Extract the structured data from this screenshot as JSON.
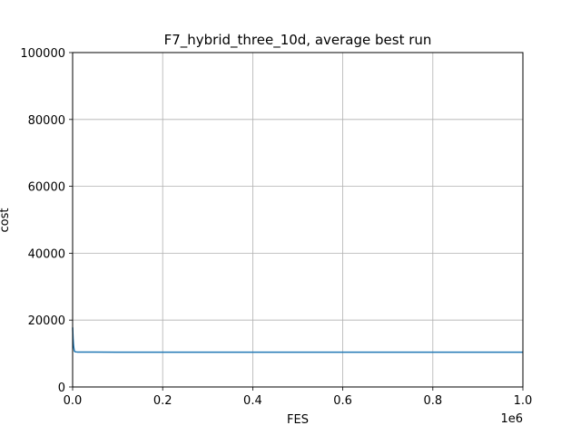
{
  "chart_data": {
    "type": "line",
    "title": "F7_hybrid_three_10d, average best run",
    "xlabel": "FES",
    "ylabel": "cost",
    "x_offset_label": "1e6",
    "xlim": [
      0,
      1.0
    ],
    "ylim": [
      0,
      100000
    ],
    "x_ticks": [
      0.0,
      0.2,
      0.4,
      0.6,
      0.8,
      1.0
    ],
    "x_tick_labels": [
      "0.0",
      "0.2",
      "0.4",
      "0.6",
      "0.8",
      "1.0"
    ],
    "y_ticks": [
      0,
      20000,
      40000,
      60000,
      80000,
      100000
    ],
    "y_tick_labels": [
      "0",
      "20000",
      "40000",
      "60000",
      "80000",
      "100000"
    ],
    "grid": true,
    "series": [
      {
        "color": "#1f77b4",
        "x": [
          0.0,
          0.001,
          0.002,
          0.003,
          0.004,
          0.006,
          0.01,
          0.05,
          0.2,
          0.4,
          0.6,
          0.8,
          1.0
        ],
        "y": [
          17800,
          14500,
          12500,
          11400,
          10700,
          10500,
          10450,
          10420,
          10400,
          10400,
          10400,
          10400,
          10400
        ]
      }
    ]
  }
}
